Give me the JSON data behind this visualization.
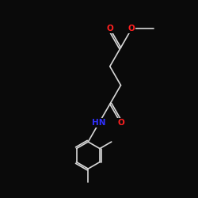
{
  "background_color": "#0a0a0a",
  "bond_color": "#d8d8d8",
  "atom_colors": {
    "O": "#ff2020",
    "N": "#3030ff",
    "C": "#d8d8d8"
  },
  "font_size_atom": 7.5,
  "line_width": 1.2,
  "figsize": [
    2.5,
    2.5
  ],
  "dpi": 100
}
